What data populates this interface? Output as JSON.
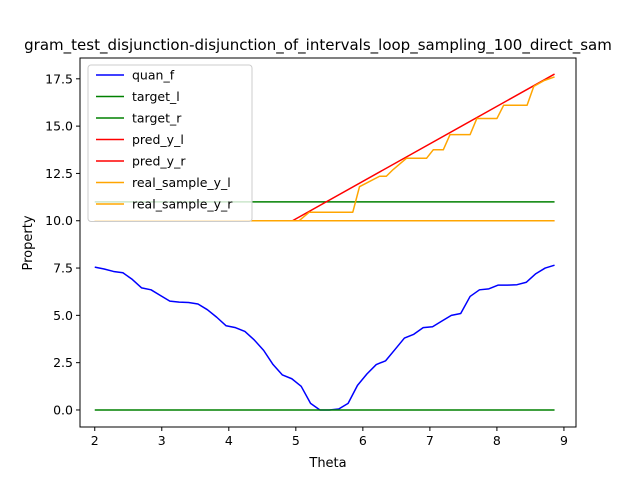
{
  "chart_data": {
    "type": "line",
    "title": "gram_test_disjunction-disjunction_of_intervals_loop_sampling_100_direct_sam",
    "xlabel": "Theta",
    "ylabel": "Property",
    "xlim": [
      1.78,
      9.18
    ],
    "ylim": [
      -0.9,
      18.6
    ],
    "xticks": [
      2,
      3,
      4,
      5,
      6,
      7,
      8,
      9
    ],
    "xtick_labels": [
      "2",
      "3",
      "4",
      "5",
      "6",
      "7",
      "8",
      "9"
    ],
    "yticks": [
      0.0,
      2.5,
      5.0,
      7.5,
      10.0,
      12.5,
      15.0,
      17.5
    ],
    "ytick_labels": [
      "0.0",
      "2.5",
      "5.0",
      "7.5",
      "10.0",
      "12.5",
      "15.0",
      "17.5"
    ],
    "grid": false,
    "legend_position": "top-left",
    "series": [
      {
        "name": "quan_f",
        "color": "#0000ff",
        "x": [
          2.0,
          2.14,
          2.28,
          2.42,
          2.56,
          2.7,
          2.84,
          2.98,
          3.12,
          3.26,
          3.4,
          3.54,
          3.68,
          3.82,
          3.96,
          4.1,
          4.24,
          4.38,
          4.52,
          4.66,
          4.8,
          4.94,
          5.08,
          5.22,
          5.36,
          5.5,
          5.64,
          5.78,
          5.92,
          6.06,
          6.2,
          6.34,
          6.48,
          6.62,
          6.76,
          6.9,
          7.04,
          7.18,
          7.32,
          7.46,
          7.6,
          7.74,
          7.88,
          8.02,
          8.16,
          8.3,
          8.44,
          8.58,
          8.72,
          8.86
        ],
        "y": [
          7.55,
          7.45,
          7.32,
          7.25,
          6.9,
          6.45,
          6.35,
          6.05,
          5.75,
          5.7,
          5.68,
          5.6,
          5.3,
          4.9,
          4.45,
          4.35,
          4.15,
          3.7,
          3.15,
          2.4,
          1.85,
          1.65,
          1.25,
          0.35,
          0.0,
          0.0,
          0.05,
          0.35,
          1.3,
          1.9,
          2.4,
          2.6,
          3.2,
          3.8,
          4.0,
          4.35,
          4.4,
          4.7,
          5.0,
          5.1,
          6.0,
          6.35,
          6.4,
          6.6,
          6.6,
          6.62,
          6.75,
          7.2,
          7.5,
          7.65
        ]
      },
      {
        "name": "target_l",
        "color": "#008000",
        "x": [
          2.0,
          8.86
        ],
        "y": [
          0.0,
          0.0
        ]
      },
      {
        "name": "target_r",
        "color": "#008000",
        "x": [
          2.0,
          8.86
        ],
        "y": [
          11.0,
          11.0
        ]
      },
      {
        "name": "pred_y_l",
        "color": "#ff0000",
        "x": [
          2.0,
          4.95,
          8.86
        ],
        "y": [
          10.0,
          10.0,
          17.75
        ]
      },
      {
        "name": "pred_y_r",
        "color": "#ff0000",
        "x": [
          2.0,
          8.86
        ],
        "y": [
          10.0,
          10.0
        ]
      },
      {
        "name": "real_sample_y_l",
        "color": "#ffa500",
        "x": [
          2.0,
          5.05,
          5.2,
          5.3,
          5.85,
          5.95,
          6.25,
          6.35,
          6.45,
          6.65,
          6.75,
          6.95,
          7.05,
          7.2,
          7.3,
          7.45,
          7.6,
          7.7,
          7.85,
          8.0,
          8.1,
          8.3,
          8.45,
          8.55,
          8.7,
          8.86
        ],
        "y": [
          10.0,
          10.0,
          10.45,
          10.45,
          10.45,
          11.8,
          12.35,
          12.35,
          12.7,
          13.3,
          13.3,
          13.3,
          13.75,
          13.75,
          14.55,
          14.55,
          14.55,
          15.4,
          15.4,
          15.4,
          16.1,
          16.1,
          16.1,
          17.1,
          17.4,
          17.6
        ]
      },
      {
        "name": "real_sample_y_r",
        "color": "#ffa500",
        "x": [
          2.0,
          8.86
        ],
        "y": [
          10.0,
          10.0
        ]
      }
    ]
  }
}
